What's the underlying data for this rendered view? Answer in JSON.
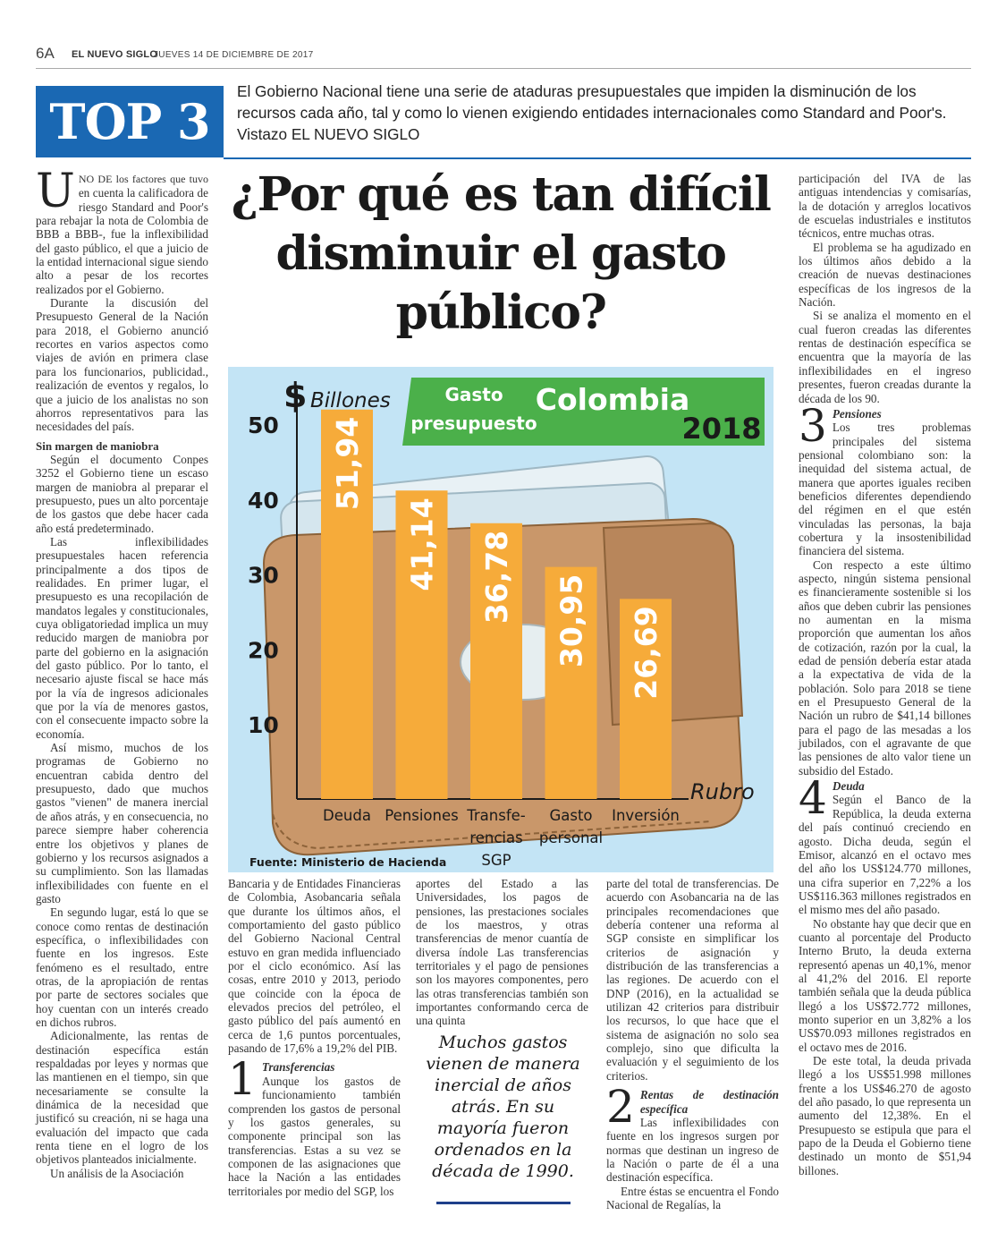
{
  "header": {
    "page_number": "6A",
    "newspaper": "EL NUEVO SIGLO",
    "date": "JUEVES 14 DE DICIEMBRE DE 2017"
  },
  "banner": {
    "label": "TOP 3",
    "deck": "El Gobierno Nacional tiene una serie de ataduras presupuestales que impiden la disminución de los recursos cada año, tal y como lo vienen exigiendo entidades internacionales como Standard and Poor's. Vistazo EL NUEVO SIGLO"
  },
  "headline": "¿Por qué es tan difícil disminuir el gasto público?",
  "column1": {
    "drop_cap": "U",
    "lead_caps": "NO DE los factores que tuvo",
    "p1": "en cuenta la calificadora de riesgo Standard and Poor's para rebajar la nota de Colombia de BBB a BBB-, fue la inflexibilidad del gasto público, el que a juicio de la entidad internacional sigue siendo alto a pesar de los recortes realizados por el Gobierno.",
    "p2": "Durante la discusión del Presupuesto General de la Nación para 2018, el Gobierno anunció recortes en varios aspectos como viajes de avión en primera clase para los funcionarios, publicidad., realización de eventos y regalos, lo que a juicio de los analistas no son ahorros representativos para las necesidades del país.",
    "subhead": "Sin margen de maniobra",
    "p3": "Según el documento Conpes 3252 el Gobierno tiene un escaso margen de maniobra al preparar el presupuesto, pues un alto porcentaje de los gastos que debe hacer cada año está predeterminado.",
    "p4": "Las inflexibilidades presupuestales hacen referencia principalmente a dos tipos de realidades. En primer lugar, el presupuesto es una recopilación de mandatos legales y constitucionales, cuya obligatoriedad implica un muy reducido margen de maniobra por parte del gobierno en la asignación del gasto público. Por lo tanto, el necesario ajuste fiscal se hace más por la vía de ingresos adicionales que por la vía de menores gastos, con el consecuente impacto sobre la economía.",
    "p5": "Así mismo, muchos de los programas de Gobierno no encuentran cabida dentro del presupuesto, dado que muchos gastos \"vienen\" de manera inercial de años atrás, y en consecuencia, no parece siempre haber coherencia entre los objetivos y planes de gobierno y los recursos asignados a su cumplimiento. Son las llamadas inflexibilidades con fuente en el gasto",
    "p6": "En segundo lugar, está lo que se conoce como rentas de destinación específica, o inflexibilidades con fuente en los ingresos. Este fenómeno es el resultado, entre otras, de la apropiación de rentas por parte de sectores sociales que hoy cuentan con un interés creado en dichos rubros.",
    "p7": "Adicionalmente, las rentas de destinación específica están respaldadas por leyes y normas que las mantienen en el tiempo, sin que necesariamente se consulte la dinámica de la necesidad que justificó su creación, ni se haga una evaluación del impacto que cada renta tiene en el logro de los objetivos planteados inicialmente.",
    "p8": "Un análisis de la Asociación"
  },
  "column2": {
    "p1": "Bancaria y de Entidades Financieras de Colombia, Asobancaria señala que durante los últimos años, el comportamiento del gasto público del Gobierno Nacional Central estuvo en gran medida influenciado por el ciclo económico. Así las cosas, entre 2010 y 2013, periodo que coincide con la época de elevados precios del petróleo, el gasto público del país aumentó en cerca de 1,6 puntos porcentuales, pasando de 17,6% a 19,2% del PIB.",
    "num": "1",
    "num_title": "Transferencias",
    "p2": "Aunque los gastos de funcionamiento también comprenden los gastos de personal y los gastos generales, su componente principal son las transferencias. Estas a su vez se componen de las asignaciones que hace la Nación a las entidades territoriales por medio del SGP, los"
  },
  "column3": {
    "p1": "aportes del Estado a las Universidades, los pagos de pensiones, las prestaciones sociales de los maestros, y otras transferencias de menor cuantía de diversa índole Las transferencias territoriales y el pago de pensiones son los mayores componentes, pero las otras transferencias también son importantes conformando cerca de una quinta"
  },
  "pull_quote": "Muchos gastos vienen de manera inercial de años atrás. En su mayoría fueron ordenados en la década de 1990.",
  "column4": {
    "p1": "parte del total de transferencias. De acuerdo con Asobancaria na de las principales recomendaciones que debería contener una reforma al SGP consiste en simplificar los criterios de asignación y distribución de las transferencias a las regiones. De acuerdo con el DNP (2016), en la actualidad se utilizan 42 criterios para distribuir los recursos, lo que hace que el sistema de asignación no solo sea complejo, sino que dificulta la evaluación y el seguimiento de los criterios.",
    "num": "2",
    "num_title": "Rentas de destinación específica",
    "p2": "Las inflexibilidades con fuente en los ingresos surgen por normas que destinan un ingreso de la Nación o parte de él a una destinación específica.",
    "p3": "Entre éstas se encuentra el Fondo Nacional de Regalías, la"
  },
  "column5": {
    "p1": "participación del IVA de las antiguas intendencias y comisarías, la de dotación y arreglos locativos de escuelas industriales e institutos técnicos, entre muchas otras.",
    "p2": "El problema se ha agudizado en los últimos años debido a la creación de nuevas destinaciones específicas de los ingresos de la Nación.",
    "p3": "Si se analiza el momento en el cual fueron creadas las diferentes rentas de destinación específica se encuentra que la mayoría de las inflexibilidades en el ingreso presentes, fueron creadas durante la década de los 90.",
    "num3": "3",
    "num3_title": "Pensiones",
    "p4": "Los tres problemas principales del sistema pensional colombiano son: la inequidad del sistema actual, de manera que aportes iguales reciben beneficios diferentes dependiendo del régimen en el que estén vinculadas las personas, la baja cobertura y la insostenibilidad financiera del sistema.",
    "p5": "Con respecto a este último aspecto, ningún sistema pensional es financieramente sostenible si los años que deben cubrir las pensiones no aumentan en la misma proporción que aumentan los años de cotización, razón por la cual, la edad de pensión debería estar atada a la expectativa de vida de la población. Solo para 2018 se tiene en el Presupuesto General de la Nación un rubro de $41,14 billones para el pago de las mesadas a los jubilados, con el agravante de que las pensiones de alto valor tiene un subsidio del Estado.",
    "num4": "4",
    "num4_title": "Deuda",
    "p6": "Según el Banco de la República, la deuda externa del país continuó creciendo en agosto. Dicha deuda, según el Emisor, alcanzó en el octavo mes del año los US$124.770 millones, una cifra superior en 7,22% a los US$116.363 millones registrados en el mismo mes del año pasado.",
    "p7": "No obstante hay que decir que en cuanto al porcentaje del Producto Interno Bruto, la deuda externa representó apenas un 40,1%, menor al 41,2% del 2016. El reporte también señala que la deuda pública llegó a los US$72.772 millones, monto superior en un 3,82% a los US$70.093 millones registrados en el octavo mes de 2016.",
    "p8": "De este total, la deuda privada llegó a los US$51.998 millones frente a los US$46.270 de agosto del año pasado, lo que representa un aumento del 12,38%. En el Presupuesto se estipula que para el papo de la Deuda el Gobierno tiene destinado un monto de $51,94 billones."
  },
  "chart_data": {
    "type": "bar",
    "title_line1": "Gasto",
    "title_line2": "presupuesto",
    "title_country": "Colombia",
    "title_year": "2018",
    "ylabel_symbol": "$",
    "ylabel": "Billones",
    "xlabel": "Rubro",
    "categories": [
      [
        "Deuda"
      ],
      [
        "Pensiones"
      ],
      [
        "Transfe-",
        "rencias",
        "SGP"
      ],
      [
        "Gasto",
        "personal"
      ],
      [
        "Inversión"
      ]
    ],
    "values": [
      51.94,
      41.14,
      36.78,
      30.95,
      26.69
    ],
    "value_labels": [
      "51,94",
      "41,14",
      "36,78",
      "30,95",
      "26,69"
    ],
    "yticks": [
      10,
      20,
      30,
      40,
      50
    ],
    "ylim": [
      0,
      55
    ],
    "source": "Fuente: Ministerio de Hacienda",
    "colors": {
      "bar": "#f6ab3a",
      "bar_text": "#ffffff",
      "banner": "#4bb04a",
      "background": "#c3e4f5"
    }
  }
}
